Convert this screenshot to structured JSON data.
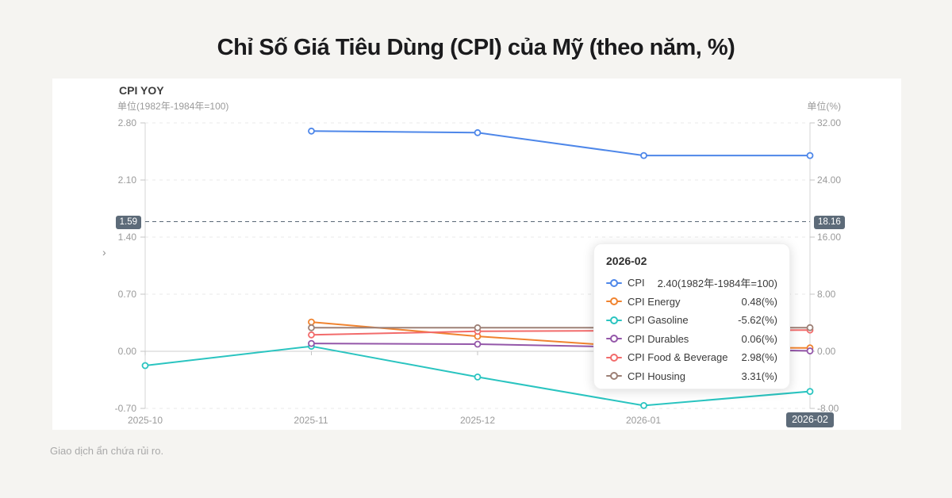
{
  "page": {
    "title": "Chỉ Số Giá Tiêu Dùng (CPI) của Mỹ (theo năm, %)",
    "disclaimer": "Giao dịch ẩn chứa rủi ro.",
    "background": "#f5f4f1"
  },
  "chart": {
    "title": "CPI YOY",
    "left_unit": "单位(1982年-1984年=100)",
    "right_unit": "单位(%)",
    "collapse_arrow": "›"
  },
  "axes": {
    "left_ticks": [
      "2.80",
      "2.10",
      "1.40",
      "0.70",
      "0.00",
      "-0.70"
    ],
    "right_ticks": [
      "32.00",
      "24.00",
      "16.00",
      "8.00",
      "0.00",
      "-8.00"
    ],
    "x_labels": [
      "2025-10",
      "2025-11",
      "2025-12",
      "2026-01"
    ],
    "x_active_label": "2026-02",
    "crosshair": {
      "left_badge": "1.59",
      "right_badge": "18.16"
    }
  },
  "tooltip": {
    "title": "2026-02",
    "rows": [
      {
        "label": "CPI",
        "value": "2.40(1982年-1984年=100)",
        "color": "#4e87e9"
      },
      {
        "label": "CPI Energy",
        "value": "0.48(%)",
        "color": "#f0832f"
      },
      {
        "label": "CPI Gasoline",
        "value": "-5.62(%)",
        "color": "#2ac4c0"
      },
      {
        "label": "CPI Durables",
        "value": "0.06(%)",
        "color": "#9457a9"
      },
      {
        "label": "CPI Food & Beverage",
        "value": "2.98(%)",
        "color": "#f26b6b"
      },
      {
        "label": "CPI Housing",
        "value": "3.31(%)",
        "color": "#9d8076"
      }
    ]
  },
  "chart_data": {
    "type": "line",
    "title": "CPI YOY",
    "categories": [
      "2025-10",
      "2025-11",
      "2025-12",
      "2026-01",
      "2026-02"
    ],
    "series": [
      {
        "name": "CPI",
        "axis": "left",
        "color": "#4e87e9",
        "values": [
          null,
          2.7,
          2.68,
          2.4,
          2.4
        ]
      },
      {
        "name": "CPI Energy",
        "axis": "right",
        "color": "#f0832f",
        "values": [
          null,
          4.1,
          2.1,
          0.55,
          0.48
        ]
      },
      {
        "name": "CPI Gasoline",
        "axis": "right",
        "color": "#2ac4c0",
        "values": [
          -2.0,
          0.7,
          -3.6,
          -7.6,
          -5.62
        ]
      },
      {
        "name": "CPI Durables",
        "axis": "right",
        "color": "#9457a9",
        "values": [
          null,
          1.1,
          1.0,
          0.55,
          0.06
        ]
      },
      {
        "name": "CPI Food & Beverage",
        "axis": "right",
        "color": "#f26b6b",
        "values": [
          null,
          2.3,
          2.8,
          2.9,
          2.98
        ]
      },
      {
        "name": "CPI Housing",
        "axis": "right",
        "color": "#9d8076",
        "values": [
          null,
          3.3,
          3.3,
          3.3,
          3.31
        ]
      }
    ],
    "left_axis": {
      "label": "单位(1982年-1984年=100)",
      "min": -0.7,
      "max": 2.8,
      "ticks": [
        2.8,
        2.1,
        1.4,
        0.7,
        0.0,
        -0.7
      ]
    },
    "right_axis": {
      "label": "单位(%)",
      "min": -8.0,
      "max": 32.0,
      "ticks": [
        32.0,
        24.0,
        16.0,
        8.0,
        0.0,
        -8.0
      ]
    },
    "crosshair_value_left": 1.59,
    "grid": "dashed horizontal gridlines",
    "legend_position": "tooltip only",
    "colors": {
      "badge_bg": "#5d6b79",
      "gridline": "#e8e8e8",
      "zero_line": "#cfcfcf",
      "axis_line": "#d6d6d6",
      "tick_mark": "#c4c4c4",
      "crosshair": "#5a6876"
    }
  }
}
